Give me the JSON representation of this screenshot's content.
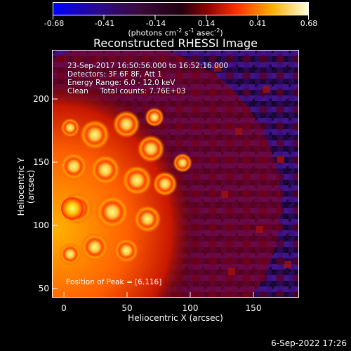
{
  "colorbar": {
    "tick_labels": [
      "-0.68",
      "-0.41",
      "-0.14",
      "0.14",
      "0.41",
      "0.68"
    ],
    "units": "(photons cm",
    "units_exp1": "-2",
    "units_mid": " s",
    "units_exp2": "-1",
    "units_mid2": " asec",
    "units_exp3": "-2",
    "units_end": ")",
    "range": [
      -0.68,
      0.68
    ]
  },
  "title": "Reconstructed RHESSI Image",
  "annotation": {
    "line1": "23-Sep-2017 16:50:56.000 to 16:52:16.000",
    "line2": "Detectors: 3F 6F 8F, Att 1",
    "line3": "Energy Range: 6.0 - 12.0 keV",
    "line4": "Clean     Total counts: 7.76E+03",
    "peak": "Position of Peak = [6,116]"
  },
  "axes": {
    "xlabel": "Heliocentric X (arcsec)",
    "ylabel": "Heliocentric Y (arcsec)",
    "xticks": [
      "0",
      "50",
      "100",
      "150"
    ],
    "yticks": [
      "200",
      "150",
      "100",
      "50"
    ],
    "xlim": [
      -8,
      186
    ],
    "ylim": [
      46,
      240
    ]
  },
  "date_stamp": "6-Sep-2022 17:26",
  "colormap": "hot-blue-purple"
}
